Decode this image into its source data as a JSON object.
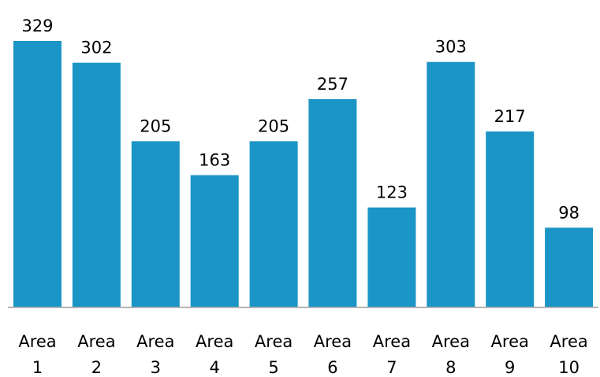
{
  "chart_data": {
    "type": "bar",
    "categories": [
      [
        "Area",
        "1"
      ],
      [
        "Area",
        "2"
      ],
      [
        "Area",
        "3"
      ],
      [
        "Area",
        "4"
      ],
      [
        "Area",
        "5"
      ],
      [
        "Area",
        "6"
      ],
      [
        "Area",
        "7"
      ],
      [
        "Area",
        "8"
      ],
      [
        "Area",
        "9"
      ],
      [
        "Area",
        "10"
      ]
    ],
    "values": [
      329,
      302,
      205,
      163,
      205,
      257,
      123,
      303,
      217,
      98
    ],
    "data_labels": [
      "329",
      "302",
      "205",
      "163",
      "205",
      "257",
      "123",
      "303",
      "217",
      "98"
    ],
    "title": "",
    "xlabel": "",
    "ylabel": "",
    "ylim": [
      0,
      329
    ],
    "grid": false,
    "legend": "none",
    "bar_color": "#1B95C6",
    "axis_color": "#A6A6A6"
  }
}
